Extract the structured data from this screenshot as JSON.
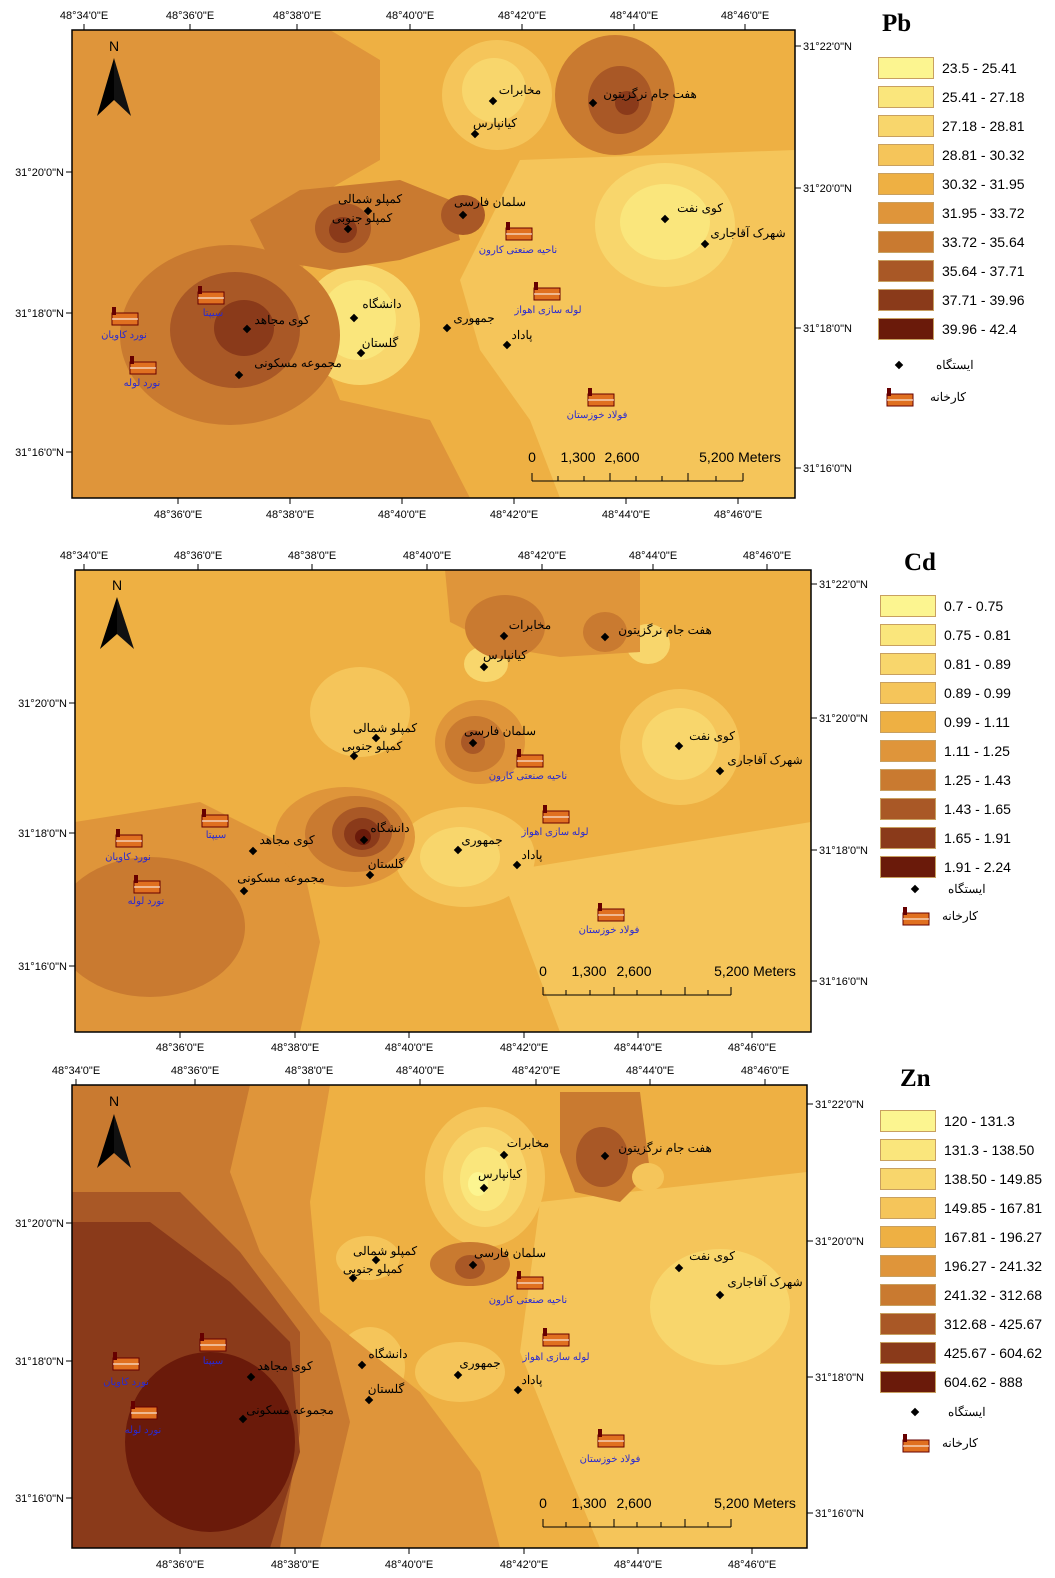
{
  "coords": {
    "top_lon_labels": [
      "48°34'0\"E",
      "48°36'0\"E",
      "48°38'0\"E",
      "48°40'0\"E",
      "48°42'0\"E",
      "48°44'0\"E",
      "48°46'0\"E"
    ],
    "bottom_lon_labels": [
      "48°36'0\"E",
      "48°38'0\"E",
      "48°40'0\"E",
      "48°42'0\"E",
      "48°44'0\"E",
      "48°46'0\"E"
    ],
    "left_lat_labels": [
      "31°20'0\"N",
      "31°18'0\"N",
      "31°16'0\"N"
    ],
    "right_lat_labels": [
      "31°22'0\"N",
      "31°20'0\"N",
      "31°18'0\"N",
      "31°16'0\"N"
    ]
  },
  "north_label": "N",
  "scale": {
    "labels": [
      "0",
      "1,300",
      "2,600",
      "5,200 Meters"
    ]
  },
  "legend_symbols": {
    "station": "ایستگاه",
    "factory": "کارخانه"
  },
  "stations": [
    {
      "name": "مخابرات",
      "panel": 1
    },
    {
      "name": "کیانپارس",
      "panel": 1
    },
    {
      "name": "هفت جام نرگزیتون",
      "panel": 1
    },
    {
      "name": "کمپلو شمالی",
      "panel": 1
    },
    {
      "name": "کمپلو جنوبی",
      "panel": 1
    },
    {
      "name": "سلمان فارسی",
      "panel": 1
    },
    {
      "name": "کوی نفت",
      "panel": 1
    },
    {
      "name": "شهرک آقاجاری",
      "panel": 1
    },
    {
      "name": "دانشگاه",
      "panel": 1
    },
    {
      "name": "گلستان",
      "panel": 1
    },
    {
      "name": "جمهوری",
      "panel": 1
    },
    {
      "name": "پاداد",
      "panel": 1
    },
    {
      "name": "کوی مجاهد",
      "panel": 1
    },
    {
      "name": "مجموعه مسکونی",
      "panel": 1
    }
  ],
  "factories": [
    {
      "name": "ناحیه صنعتی کارون"
    },
    {
      "name": "لوله سازی اهواز"
    },
    {
      "name": "فولاد خوزستان"
    },
    {
      "name": "سیپتا"
    },
    {
      "name": "نورد کاویان"
    },
    {
      "name": "نورد لوله"
    }
  ],
  "maps": [
    {
      "element": "Pb",
      "classes": [
        {
          "label": "23.5 - 25.41",
          "color": "#fcf590"
        },
        {
          "label": "25.41 - 27.18",
          "color": "#fae67c"
        },
        {
          "label": "27.18 - 28.81",
          "color": "#f8d66c"
        },
        {
          "label": "28.81 - 30.32",
          "color": "#f5c55a"
        },
        {
          "label": "30.32 - 31.95",
          "color": "#eeb043"
        },
        {
          "label": "31.95 - 33.72",
          "color": "#df953a"
        },
        {
          "label": "33.72 - 35.64",
          "color": "#c97a30"
        },
        {
          "label": "35.64 - 37.71",
          "color": "#a95826"
        },
        {
          "label": "37.71 - 39.96",
          "color": "#8a3a1a"
        },
        {
          "label": "39.96 - 42.4",
          "color": "#6a1a0a"
        }
      ]
    },
    {
      "element": "Cd",
      "classes": [
        {
          "label": "0.7 - 0.75",
          "color": "#fcf590"
        },
        {
          "label": "0.75 - 0.81",
          "color": "#fae67c"
        },
        {
          "label": "0.81 - 0.89",
          "color": "#f8d66c"
        },
        {
          "label": "0.89 - 0.99",
          "color": "#f5c55a"
        },
        {
          "label": "0.99 - 1.11",
          "color": "#eeb043"
        },
        {
          "label": "1.11 - 1.25",
          "color": "#df953a"
        },
        {
          "label": "1.25 - 1.43",
          "color": "#c97a30"
        },
        {
          "label": "1.43 - 1.65",
          "color": "#a95826"
        },
        {
          "label": "1.65 - 1.91",
          "color": "#8a3a1a"
        },
        {
          "label": "1.91 - 2.24",
          "color": "#6a1a0a"
        }
      ]
    },
    {
      "element": "Zn",
      "classes": [
        {
          "label": "120 - 131.3",
          "color": "#fcf590"
        },
        {
          "label": "131.3 - 138.50",
          "color": "#fae67c"
        },
        {
          "label": "138.50 - 149.85",
          "color": "#f8d66c"
        },
        {
          "label": "149.85 - 167.81",
          "color": "#f5c55a"
        },
        {
          "label": "167.81 - 196.27",
          "color": "#eeb043"
        },
        {
          "label": "196.27 - 241.32",
          "color": "#df953a"
        },
        {
          "label": "241.32 - 312.68",
          "color": "#c97a30"
        },
        {
          "label": "312.68 - 425.67",
          "color": "#a95826"
        },
        {
          "label": "425.67 - 604.62",
          "color": "#8a3a1a"
        },
        {
          "label": "604.62 - 888",
          "color": "#6a1a0a"
        }
      ]
    }
  ]
}
